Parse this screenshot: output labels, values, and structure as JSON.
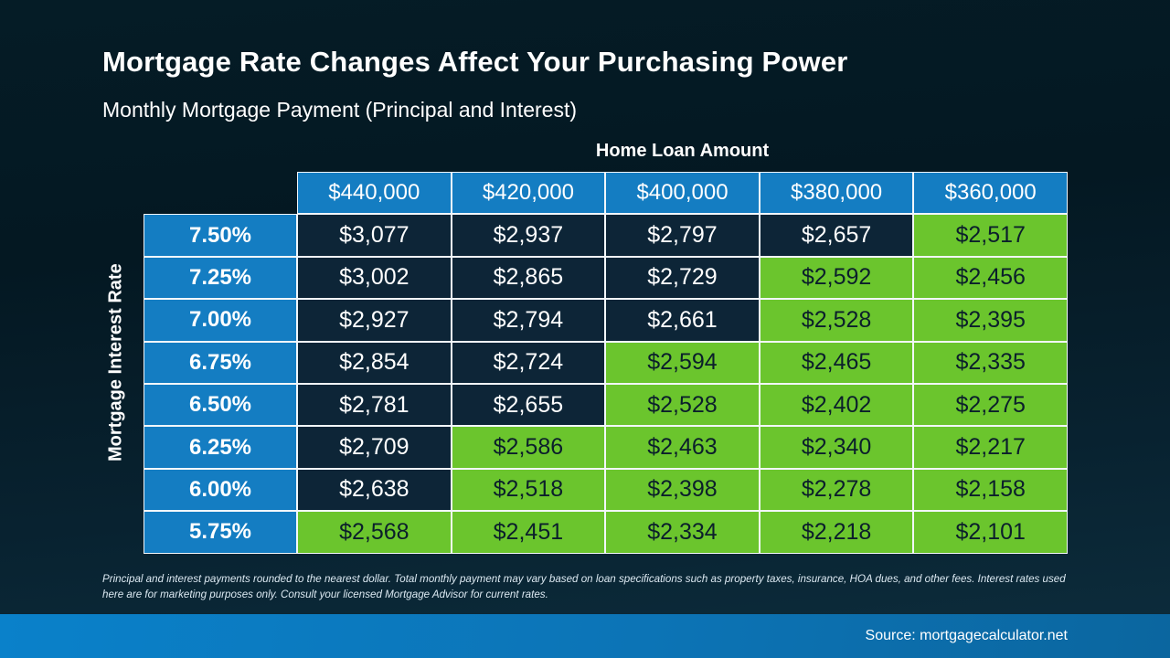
{
  "slide": {
    "title": "Mortgage Rate Changes Affect Your Purchasing Power",
    "subtitle": "Monthly Mortgage Payment (Principal and Interest)",
    "column_group_label": "Home Loan Amount",
    "row_group_label": "Mortgage Interest Rate",
    "footnote": "Principal and interest payments rounded to the nearest dollar. Total monthly payment may vary based on loan specifications such as property taxes, insurance, HOA dues, and other fees. Interest rates used here are for marketing purposes only. Consult your licensed Mortgage Advisor for current rates.",
    "source": "Source: mortgagecalculator.net"
  },
  "table": {
    "columns": [
      "$440,000",
      "$420,000",
      "$400,000",
      "$380,000",
      "$360,000"
    ],
    "rows": [
      {
        "rate": "7.50%",
        "values": [
          "$3,077",
          "$2,937",
          "$2,797",
          "$2,657",
          "$2,517"
        ],
        "green_from": 4
      },
      {
        "rate": "7.25%",
        "values": [
          "$3,002",
          "$2,865",
          "$2,729",
          "$2,592",
          "$2,456"
        ],
        "green_from": 3
      },
      {
        "rate": "7.00%",
        "values": [
          "$2,927",
          "$2,794",
          "$2,661",
          "$2,528",
          "$2,395"
        ],
        "green_from": 3
      },
      {
        "rate": "6.75%",
        "values": [
          "$2,854",
          "$2,724",
          "$2,594",
          "$2,465",
          "$2,335"
        ],
        "green_from": 2
      },
      {
        "rate": "6.50%",
        "values": [
          "$2,781",
          "$2,655",
          "$2,528",
          "$2,402",
          "$2,275"
        ],
        "green_from": 2
      },
      {
        "rate": "6.25%",
        "values": [
          "$2,709",
          "$2,586",
          "$2,463",
          "$2,340",
          "$2,217"
        ],
        "green_from": 1
      },
      {
        "rate": "6.00%",
        "values": [
          "$2,638",
          "$2,518",
          "$2,398",
          "$2,278",
          "$2,158"
        ],
        "green_from": 1
      },
      {
        "rate": "5.75%",
        "values": [
          "$2,568",
          "$2,451",
          "$2,334",
          "$2,218",
          "$2,101"
        ],
        "green_from": 0
      }
    ]
  },
  "colors": {
    "header_blue": "#147dc2",
    "affordable_green": "#6bc52d",
    "dark_navy_cell": "#0d2537",
    "cell_border": "#f2f7fb"
  },
  "chart_data": {
    "type": "table",
    "title": "Mortgage Rate Changes Affect Your Purchasing Power",
    "subtitle": "Monthly Mortgage Payment (Principal and Interest)",
    "column_axis_label": "Home Loan Amount",
    "row_axis_label": "Mortgage Interest Rate",
    "columns": [
      440000,
      420000,
      400000,
      380000,
      360000
    ],
    "rows": [
      "7.50%",
      "7.25%",
      "7.00%",
      "6.75%",
      "6.50%",
      "6.25%",
      "6.00%",
      "5.75%"
    ],
    "values": [
      [
        3077,
        2937,
        2797,
        2657,
        2517
      ],
      [
        3002,
        2865,
        2729,
        2592,
        2456
      ],
      [
        2927,
        2794,
        2661,
        2528,
        2395
      ],
      [
        2854,
        2724,
        2594,
        2465,
        2335
      ],
      [
        2781,
        2655,
        2528,
        2402,
        2275
      ],
      [
        2709,
        2586,
        2463,
        2340,
        2217
      ],
      [
        2638,
        2518,
        2398,
        2278,
        2158
      ],
      [
        2568,
        2451,
        2334,
        2218,
        2101
      ]
    ],
    "highlight_rule": "cells under $2,600 highlighted green; cells $2,600 and above shown dark navy"
  }
}
